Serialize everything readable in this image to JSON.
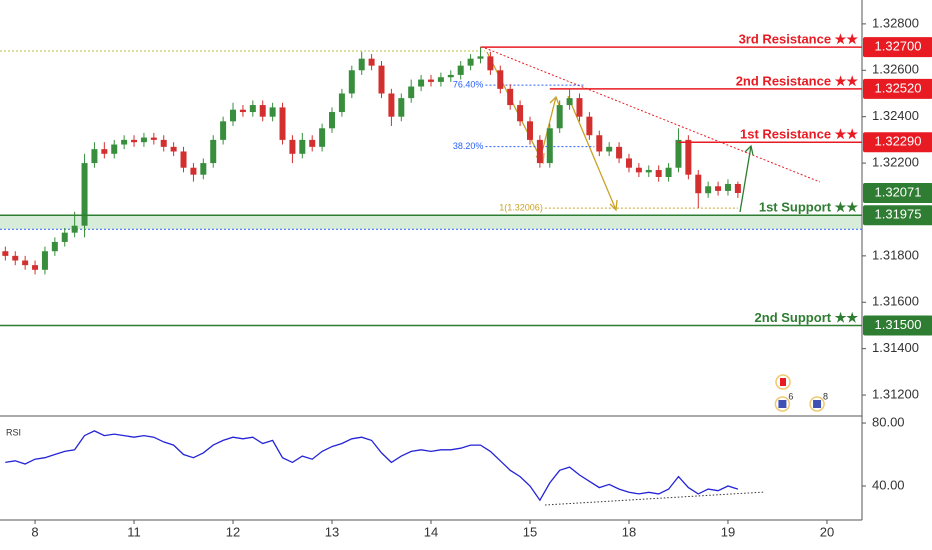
{
  "chart_data": {
    "type": "candlestick",
    "xlim": [
      -0.354,
      8.354
    ],
    "xticks": [
      {
        "value": 0,
        "label": "8"
      },
      {
        "value": 1,
        "label": "11"
      },
      {
        "value": 2,
        "label": "12"
      },
      {
        "value": 3,
        "label": "13"
      },
      {
        "value": 4,
        "label": "14"
      },
      {
        "value": 5,
        "label": "15"
      },
      {
        "value": 6,
        "label": "18"
      },
      {
        "value": 7,
        "label": "19"
      },
      {
        "value": 8,
        "label": "20"
      }
    ],
    "ylim": [
      1.31114,
      1.32903
    ],
    "yticks": [
      {
        "value": 1.328,
        "label": "1.32800"
      },
      {
        "value": 1.326,
        "label": "1.32600"
      },
      {
        "value": 1.324,
        "label": "1.32400"
      },
      {
        "value": 1.322,
        "label": "1.32200"
      },
      {
        "value": 1.318,
        "label": "1.31800"
      },
      {
        "value": 1.316,
        "label": "1.31600"
      },
      {
        "value": 1.314,
        "label": "1.31400"
      },
      {
        "value": 1.312,
        "label": "1.31200"
      }
    ],
    "up_color": "#388e3c",
    "down_color": "#d32f2f",
    "x": [
      -0.3,
      -0.2,
      -0.1,
      0,
      0.1,
      0.2,
      0.3,
      0.4,
      0.5,
      0.6,
      0.7,
      0.8,
      0.9,
      1,
      1.1,
      1.2,
      1.3,
      1.4,
      1.5,
      1.6,
      1.7,
      1.8,
      1.9,
      2,
      2.1,
      2.2,
      2.3,
      2.4,
      2.5,
      2.6,
      2.7,
      2.8,
      2.9,
      3,
      3.1,
      3.2,
      3.3,
      3.4,
      3.5,
      3.6,
      3.7,
      3.8,
      3.9,
      4,
      4.1,
      4.2,
      4.3,
      4.4,
      4.5,
      4.6,
      4.7,
      4.8,
      4.9,
      5,
      5.1,
      5.2,
      5.3,
      5.4,
      5.5,
      5.6,
      5.7,
      5.8,
      5.9,
      6,
      6.1,
      6.2,
      6.3,
      6.4,
      6.5,
      6.6,
      6.7,
      6.8,
      6.9,
      7,
      7.1
    ],
    "open": [
      1.3182,
      1.318,
      1.3178,
      1.3176,
      1.3174,
      1.3182,
      1.3186,
      1.319,
      1.3193,
      1.322,
      1.3226,
      1.3224,
      1.3228,
      1.323,
      1.3229,
      1.3231,
      1.323,
      1.3227,
      1.3225,
      1.3218,
      1.3215,
      1.322,
      1.323,
      1.3238,
      1.3243,
      1.3242,
      1.3245,
      1.324,
      1.3244,
      1.323,
      1.3224,
      1.323,
      1.3227,
      1.3235,
      1.3242,
      1.325,
      1.326,
      1.3265,
      1.3262,
      1.325,
      1.324,
      1.3248,
      1.3253,
      1.3256,
      1.3255,
      1.3257,
      1.3258,
      1.3262,
      1.3265,
      1.3266,
      1.326,
      1.3252,
      1.3245,
      1.3238,
      1.323,
      1.322,
      1.3235,
      1.3245,
      1.3248,
      1.324,
      1.3232,
      1.3225,
      1.3227,
      1.3222,
      1.3218,
      1.3216,
      1.3217,
      1.3214,
      1.3218,
      1.323,
      1.3215,
      1.3207,
      1.321,
      1.3208,
      1.3211
    ],
    "high": [
      1.3184,
      1.3182,
      1.318,
      1.3178,
      1.3184,
      1.3188,
      1.3192,
      1.3199,
      1.3224,
      1.3229,
      1.3229,
      1.323,
      1.3232,
      1.3232,
      1.3233,
      1.3233,
      1.3232,
      1.3229,
      1.3227,
      1.322,
      1.3222,
      1.3232,
      1.324,
      1.3246,
      1.3245,
      1.3247,
      1.3247,
      1.3246,
      1.3246,
      1.3232,
      1.3233,
      1.3232,
      1.3237,
      1.3244,
      1.3252,
      1.3262,
      1.3268,
      1.3267,
      1.3264,
      1.3252,
      1.325,
      1.3256,
      1.3258,
      1.3258,
      1.3259,
      1.326,
      1.3264,
      1.3267,
      1.327,
      1.3268,
      1.3262,
      1.3254,
      1.3247,
      1.324,
      1.3232,
      1.3237,
      1.3247,
      1.3252,
      1.325,
      1.3242,
      1.3234,
      1.3229,
      1.3229,
      1.3224,
      1.322,
      1.3219,
      1.3219,
      1.322,
      1.3235,
      1.3232,
      1.3217,
      1.3212,
      1.3212,
      1.3213,
      1.3212
    ],
    "low": [
      1.3178,
      1.3176,
      1.3174,
      1.3172,
      1.3172,
      1.318,
      1.3184,
      1.3188,
      1.3188,
      1.3218,
      1.3222,
      1.3222,
      1.3226,
      1.3227,
      1.3227,
      1.3228,
      1.3225,
      1.3223,
      1.3216,
      1.3212,
      1.3213,
      1.3218,
      1.3228,
      1.3236,
      1.324,
      1.324,
      1.3238,
      1.3238,
      1.3228,
      1.322,
      1.3222,
      1.3225,
      1.3225,
      1.3233,
      1.324,
      1.3248,
      1.3258,
      1.326,
      1.3248,
      1.3236,
      1.3238,
      1.3246,
      1.3251,
      1.3253,
      1.3253,
      1.3255,
      1.3256,
      1.326,
      1.3263,
      1.3258,
      1.325,
      1.3243,
      1.3236,
      1.3228,
      1.3218,
      1.3218,
      1.3233,
      1.3243,
      1.3238,
      1.323,
      1.3223,
      1.3223,
      1.322,
      1.3216,
      1.3214,
      1.3214,
      1.3212,
      1.3212,
      1.3216,
      1.3213,
      1.32006,
      1.3205,
      1.3206,
      1.3206,
      1.3205
    ],
    "close": [
      1.318,
      1.3178,
      1.3176,
      1.3174,
      1.3182,
      1.3186,
      1.319,
      1.3193,
      1.322,
      1.3226,
      1.3224,
      1.3228,
      1.323,
      1.3229,
      1.3231,
      1.323,
      1.3227,
      1.3225,
      1.3218,
      1.3215,
      1.322,
      1.323,
      1.3238,
      1.3243,
      1.3242,
      1.3245,
      1.324,
      1.3244,
      1.323,
      1.3224,
      1.323,
      1.3227,
      1.3235,
      1.3242,
      1.325,
      1.326,
      1.3265,
      1.3262,
      1.325,
      1.324,
      1.3248,
      1.3253,
      1.3256,
      1.3255,
      1.3257,
      1.3258,
      1.3262,
      1.3265,
      1.3266,
      1.326,
      1.3252,
      1.3245,
      1.3238,
      1.323,
      1.322,
      1.3235,
      1.3245,
      1.3248,
      1.324,
      1.3232,
      1.3225,
      1.3227,
      1.3222,
      1.3218,
      1.3216,
      1.3217,
      1.3214,
      1.3218,
      1.323,
      1.3215,
      1.3207,
      1.321,
      1.3208,
      1.3211,
      1.32071
    ],
    "levels": [
      {
        "name": "3rd Resistance ★★",
        "value": 1.327,
        "label": "1.32700",
        "color": "#e81b23",
        "from_x": 4.5
      },
      {
        "name": "2nd Resistance ★★",
        "value": 1.3252,
        "label": "1.32520",
        "color": "#e81b23",
        "from_x": 5.2
      },
      {
        "name": "1st Resistance ★★",
        "value": 1.3229,
        "label": "1.32290",
        "color": "#e81b23",
        "from_x": 6.5
      },
      {
        "name": "1st Support ★★",
        "value": 1.31975,
        "label": "1.31975",
        "color": "#2e7d32",
        "from_x": -0.354
      },
      {
        "name": "2nd Support ★★",
        "value": 1.315,
        "label": "1.31500",
        "color": "#2e7d32",
        "from_x": -0.354
      }
    ],
    "zone_low": 1.31915,
    "current_price": {
      "value": 1.32071,
      "label": "1.32071",
      "color": "#2e7d32"
    },
    "fib": [
      {
        "label": "76.40%",
        "value": 1.32536,
        "color": "#2962ff",
        "from_x": 4.55,
        "to_x": 5.55
      },
      {
        "label": "38.20%",
        "value": 1.32271,
        "color": "#2962ff",
        "from_x": 4.55,
        "to_x": 5.65
      },
      {
        "label": "1(1.32006)",
        "value": 1.32006,
        "color": "#c9a227",
        "from_x": 5.15,
        "to_x": 7.1
      }
    ],
    "events": [
      {
        "label": "6",
        "x": 7.55
      },
      {
        "label": "8",
        "x": 7.9
      }
    ],
    "rsi": {
      "name": "RSI",
      "color": "#2424d6",
      "ylim": [
        18.4,
        83.2
      ],
      "yticks": [
        {
          "value": 80,
          "label": "80.00"
        },
        {
          "value": 40,
          "label": "40.00"
        }
      ],
      "values": [
        55,
        56,
        54,
        57,
        58,
        60,
        62,
        63,
        72,
        75,
        72,
        73,
        72,
        71,
        72,
        71,
        68,
        66,
        60,
        58,
        61,
        66,
        69,
        71,
        70,
        71,
        67,
        69,
        58,
        55,
        59,
        57,
        62,
        65,
        67,
        70,
        71,
        69,
        61,
        55,
        59,
        62,
        63,
        62,
        63,
        63,
        64,
        66,
        66,
        62,
        56,
        50,
        46,
        40,
        31,
        42,
        50,
        52,
        47,
        43,
        39,
        41,
        38,
        36,
        35,
        36,
        35,
        38,
        46,
        39,
        35,
        38,
        37,
        40,
        38
      ]
    }
  }
}
